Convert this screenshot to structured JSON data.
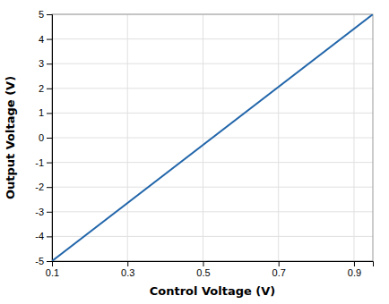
{
  "chart_data": {
    "type": "line",
    "x": [
      0.1,
      0.95
    ],
    "values": [
      -5.0,
      5.0
    ],
    "color": "#2266aa",
    "xlabel": "Control Voltage (V)",
    "ylabel": "Output Voltage (V)",
    "xlim": [
      0.1,
      0.95
    ],
    "ylim": [
      -5,
      5
    ],
    "xticks": [
      0.1,
      0.3,
      0.5,
      0.7,
      0.9
    ],
    "yticks": [
      -5,
      -4,
      -3,
      -2,
      -1,
      0,
      1,
      2,
      3,
      4,
      5
    ],
    "grid": true
  }
}
